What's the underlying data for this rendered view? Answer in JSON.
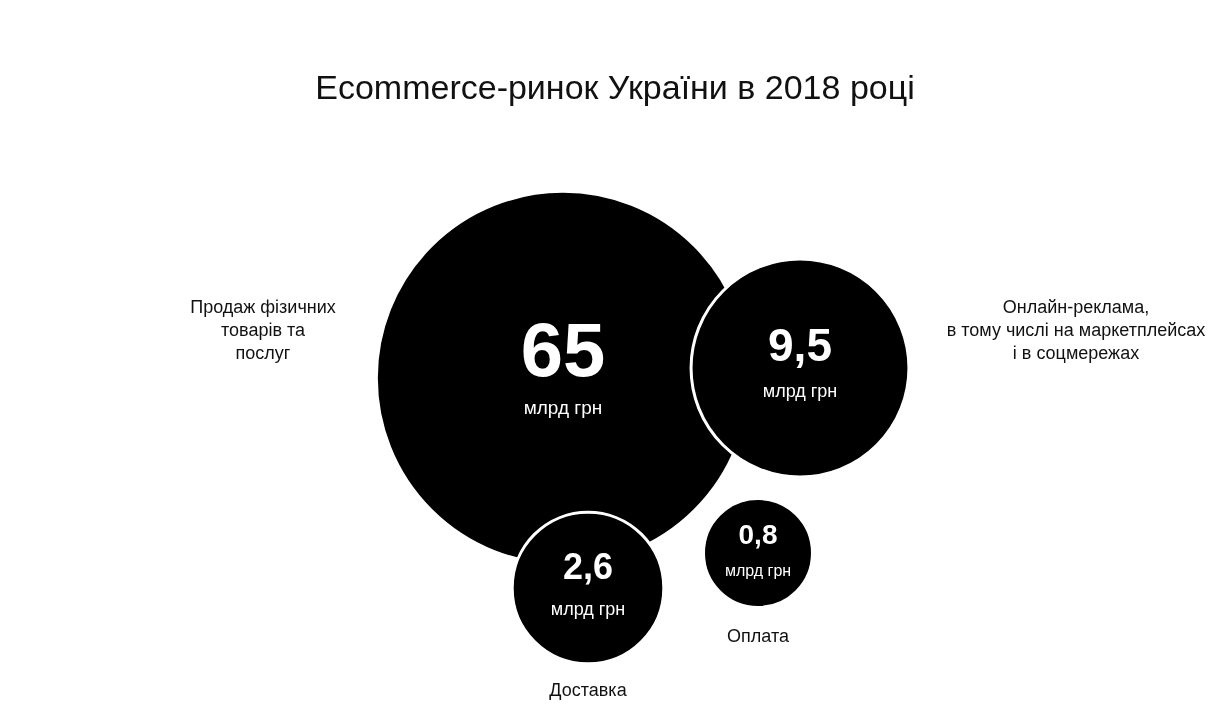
{
  "chart_data": {
    "type": "other",
    "title": "Ecommerce-ринок України в 2018 році",
    "categories": [
      "Продаж фізичних товарів та послуг",
      "Онлайн-реклама, в тому числі на маркетплейсах і в соцмережах",
      "Доставка",
      "Оплата"
    ],
    "values": [
      65,
      9.5,
      2.6,
      0.8
    ],
    "value_labels": [
      "65",
      "9,5",
      "2,6",
      "0,8"
    ],
    "annotations": [
      "млрд грн",
      "млрд грн",
      "млрд грн",
      "млрд грн"
    ],
    "colors": [
      "#000000",
      "#000000",
      "#000000",
      "#000000"
    ]
  }
}
